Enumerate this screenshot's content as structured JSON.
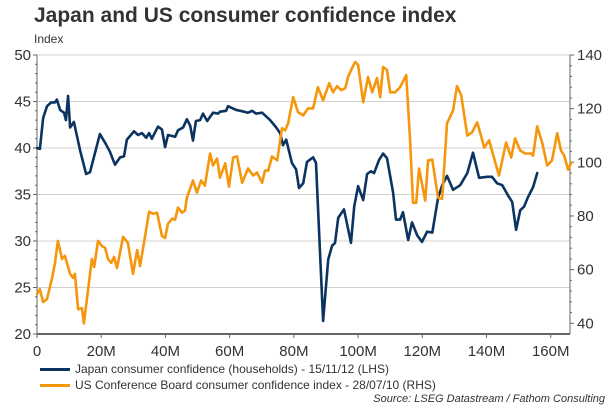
{
  "title": "Japan and US consumer confidence index",
  "unit_label": "Index",
  "source": "Source: LSEG Datastream / Fathom Consulting",
  "colors": {
    "japan": "#0b3461",
    "us": "#f5960d",
    "grid": "#d0d0d0",
    "axis": "#666666"
  },
  "chart_data": {
    "type": "line",
    "title": "Japan and US consumer confidence index",
    "xlabel": "",
    "ylabel": "Index",
    "x_ticks": [
      0,
      20,
      40,
      60,
      80,
      100,
      120,
      140,
      160
    ],
    "x_tick_labels": [
      "0",
      "20M",
      "40M",
      "60M",
      "80M",
      "100M",
      "120M",
      "140M",
      "160M"
    ],
    "xlim": [
      0,
      166
    ],
    "y_left": {
      "ticks": [
        20,
        25,
        30,
        35,
        40,
        45,
        50
      ],
      "labels": [
        "20",
        "25",
        "30",
        "35",
        "40",
        "45",
        "50"
      ],
      "lim": [
        20,
        50
      ]
    },
    "y_right": {
      "ticks": [
        40,
        60,
        80,
        100,
        120,
        140
      ],
      "labels": [
        "40",
        "60",
        "80",
        "100",
        "120",
        "140"
      ],
      "lim": [
        36,
        140
      ]
    },
    "grid": true,
    "legend_position": "bottom-left",
    "series": [
      {
        "name": "Japan consumer confidence (households) - 15/11/12 (LHS)",
        "axis": "left",
        "x": [
          0,
          0.9,
          1.9,
          3.1,
          4.4,
          5.6,
          6.2,
          7.2,
          8.4,
          9,
          9.7,
          10.3,
          11.5,
          13.4,
          15.3,
          16.5,
          19.6,
          21.5,
          22.7,
          24.3,
          25.9,
          27.1,
          28,
          30.2,
          31.5,
          32.7,
          34,
          34.9,
          35.8,
          37.7,
          38.9,
          39.9,
          40.8,
          43,
          43.9,
          45.5,
          46.7,
          47.7,
          48.6,
          49.5,
          50.8,
          51.7,
          53,
          54.8,
          56.4,
          57,
          58.9,
          59.5,
          62,
          64.5,
          65.7,
          67,
          68.2,
          70.1,
          72.6,
          74.5,
          75.7,
          76.6,
          77.6,
          79.4,
          80.7,
          81.6,
          82.9,
          84.1,
          86,
          86.9,
          89.1,
          90.7,
          91.9,
          92.8,
          93.8,
          95.6,
          97.8,
          98.8,
          100,
          101.6,
          102.8,
          104,
          105,
          106.5,
          107.8,
          109,
          110.9,
          111.8,
          113.1,
          114,
          115.6,
          116.8,
          118.4,
          119.9,
          121.5,
          123.1,
          124.9,
          126.2,
          127.7,
          129.6,
          131.8,
          134,
          135.8,
          137.7,
          140.2,
          141.7,
          143.3,
          144.9,
          146.7,
          148,
          149.2,
          150.5,
          151.7,
          152.9,
          154.5,
          155.8
        ],
        "values": [
          40.0,
          39.9,
          43.2,
          44.5,
          44.9,
          44.9,
          45.2,
          44.1,
          43.8,
          43.0,
          45.6,
          42.2,
          42.8,
          39.8,
          37.2,
          37.4,
          41.5,
          40.4,
          39.6,
          38.2,
          39.0,
          39.1,
          40.9,
          41.8,
          41.4,
          41.6,
          41.1,
          41.6,
          41.0,
          42.3,
          42.0,
          40.1,
          41.4,
          41.2,
          41.9,
          42.2,
          43.1,
          42.4,
          40.8,
          42.9,
          43.0,
          43.7,
          42.9,
          43.8,
          43.7,
          43.9,
          44.0,
          44.5,
          44.1,
          43.9,
          43.8,
          44.0,
          43.7,
          43.8,
          43.0,
          42.2,
          41.6,
          40.3,
          40.9,
          38.4,
          37.7,
          35.7,
          36.2,
          38.5,
          39.0,
          38.4,
          21.4,
          28.0,
          29.5,
          29.8,
          32.5,
          33.4,
          29.8,
          33.7,
          35.9,
          34.4,
          37.2,
          37.5,
          37.3,
          38.7,
          39.4,
          38.9,
          35.2,
          32.3,
          32.3,
          33.1,
          30.1,
          32.0,
          30.6,
          29.9,
          31.0,
          30.9,
          34.6,
          36.0,
          37.0,
          35.5,
          36.0,
          37.3,
          39.5,
          36.8,
          36.9,
          36.9,
          36.2,
          36.0,
          34.9,
          34.2,
          31.2,
          33.3,
          33.7,
          34.7,
          35.8,
          37.3
        ]
      },
      {
        "name": "US Conference Board consumer confidence index - 28/07/10 (RHS)",
        "axis": "right",
        "x": [
          0,
          0.9,
          1.9,
          3.1,
          4.7,
          5.6,
          6.5,
          7.8,
          8.7,
          10.3,
          11.2,
          11.8,
          12.8,
          14,
          14.6,
          17.1,
          17.8,
          19,
          20.2,
          21.2,
          22.1,
          23.1,
          24,
          24.9,
          26.8,
          28.3,
          29.9,
          31.2,
          32.1,
          34.9,
          36.1,
          37.4,
          38.9,
          39.9,
          40.8,
          42.1,
          43,
          43.9,
          45.2,
          46.1,
          46.7,
          48.6,
          49.8,
          51.1,
          52.3,
          53.9,
          54.8,
          56.1,
          57,
          58.6,
          59.8,
          61.1,
          62.3,
          63.9,
          65.7,
          67.3,
          68.5,
          70.1,
          71,
          72,
          73.2,
          74.8,
          76.3,
          77.3,
          78.2,
          79.8,
          81.3,
          82.9,
          84.4,
          86,
          87.5,
          89.1,
          91,
          92.2,
          93.5,
          94.7,
          96,
          96.9,
          98.1,
          99.1,
          100,
          101.6,
          103.1,
          104.4,
          105.9,
          106.9,
          107.8,
          109,
          110,
          111.5,
          113.1,
          115,
          116.2,
          117.1,
          118.1,
          119,
          120.9,
          121.8,
          123.1,
          124.9,
          126.2,
          127.7,
          129.6,
          130.8,
          132.1,
          134,
          135.5,
          137.1,
          139.3,
          140.8,
          142.4,
          143.9,
          146.1,
          147.7,
          148.9,
          150.5,
          152,
          153.9,
          154.5,
          155.8,
          157.3,
          158.9,
          160.4,
          162,
          163.2,
          164.2,
          165.4,
          166.4
        ],
        "values": [
          50.9,
          52.7,
          47.9,
          49.0,
          56.9,
          62.5,
          70.7,
          64.0,
          65.1,
          58.4,
          56.9,
          58.4,
          45.2,
          45.6,
          40.0,
          64.0,
          61.0,
          70.7,
          68.8,
          68.1,
          64.0,
          62.5,
          64.7,
          60.6,
          72.2,
          70.0,
          58.4,
          67.3,
          61.3,
          81.6,
          80.8,
          81.2,
          72.6,
          71.8,
          77.1,
          79.0,
          78.6,
          83.1,
          81.2,
          82.0,
          86.8,
          93.2,
          88.7,
          93.2,
          91.3,
          103.3,
          98.8,
          101.4,
          94.3,
          99.6,
          90.9,
          101.8,
          102.2,
          92.4,
          97.7,
          95.1,
          96.2,
          92.4,
          96.9,
          96.9,
          102.2,
          100.7,
          112.7,
          111.9,
          114.5,
          124.3,
          118.7,
          117.5,
          120.1,
          120.1,
          128.0,
          123.1,
          129.5,
          126.1,
          128.4,
          126.9,
          127.6,
          131.8,
          135.1,
          137.4,
          136.3,
          122.4,
          131.8,
          126.1,
          131.4,
          124.3,
          135.5,
          134.4,
          126.1,
          126.1,
          128.0,
          132.5,
          108.2,
          84.9,
          84.9,
          97.7,
          85.7,
          100.7,
          101.0,
          86.8,
          86.4,
          114.5,
          119.4,
          128.4,
          125.0,
          110.0,
          111.2,
          114.9,
          105.5,
          108.2,
          101.4,
          95.1,
          107.4,
          101.8,
          108.9,
          104.4,
          103.3,
          103.3,
          102.5,
          113.4,
          107.4,
          98.8,
          100.7,
          110.8,
          104.4,
          102.5,
          97.3,
          99.9
        ]
      }
    ]
  }
}
